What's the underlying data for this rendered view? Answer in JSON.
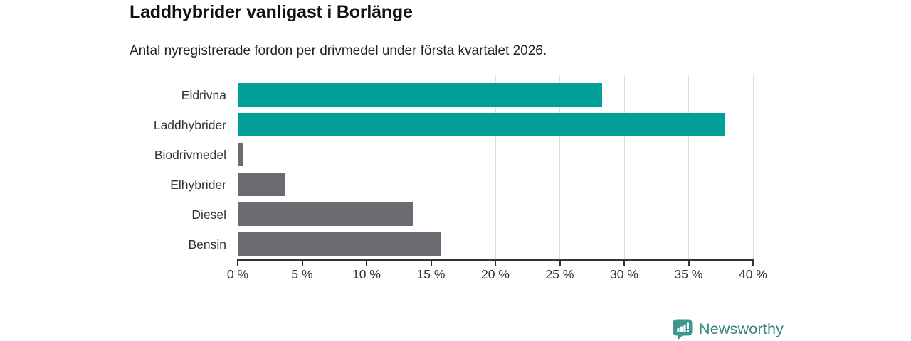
{
  "header": {
    "title": "Laddhybrider vanligast i Borlänge",
    "subtitle": "Antal nyregistrerade fordon per drivmedel under första kvartalet 2026."
  },
  "chart_data": {
    "type": "bar",
    "orientation": "horizontal",
    "title": "Laddhybrider vanligast i Borlänge",
    "subtitle": "Antal nyregistrerade fordon per drivmedel under första kvartalet 2026.",
    "categories": [
      "Eldrivna",
      "Laddhybrider",
      "Biodrivmedel",
      "Elhybrider",
      "Diesel",
      "Bensin"
    ],
    "values": [
      28.3,
      37.8,
      0.4,
      3.7,
      13.6,
      15.8
    ],
    "unit": "%",
    "xlim": [
      0,
      40
    ],
    "x_ticks": [
      0,
      5,
      10,
      15,
      20,
      25,
      30,
      35,
      40
    ],
    "x_tick_labels": [
      "0 %",
      "5 %",
      "10 %",
      "15 %",
      "20 %",
      "25 %",
      "30 %",
      "35 %",
      "40 %"
    ],
    "bar_colors": [
      "#00a099",
      "#00a099",
      "#6b6b72",
      "#6b6b72",
      "#6b6b72",
      "#6b6b72"
    ],
    "grid": true,
    "legend": "none"
  },
  "colors": {
    "highlight_teal": "#00a099",
    "neutral_gray": "#6b6b72",
    "gridline": "#dcdcdc",
    "axis": "#333333",
    "text": "#333333",
    "brand_teal": "#35847e",
    "logo_icon_fill": "#3e968f"
  },
  "footer": {
    "brand": "Newsworthy"
  }
}
